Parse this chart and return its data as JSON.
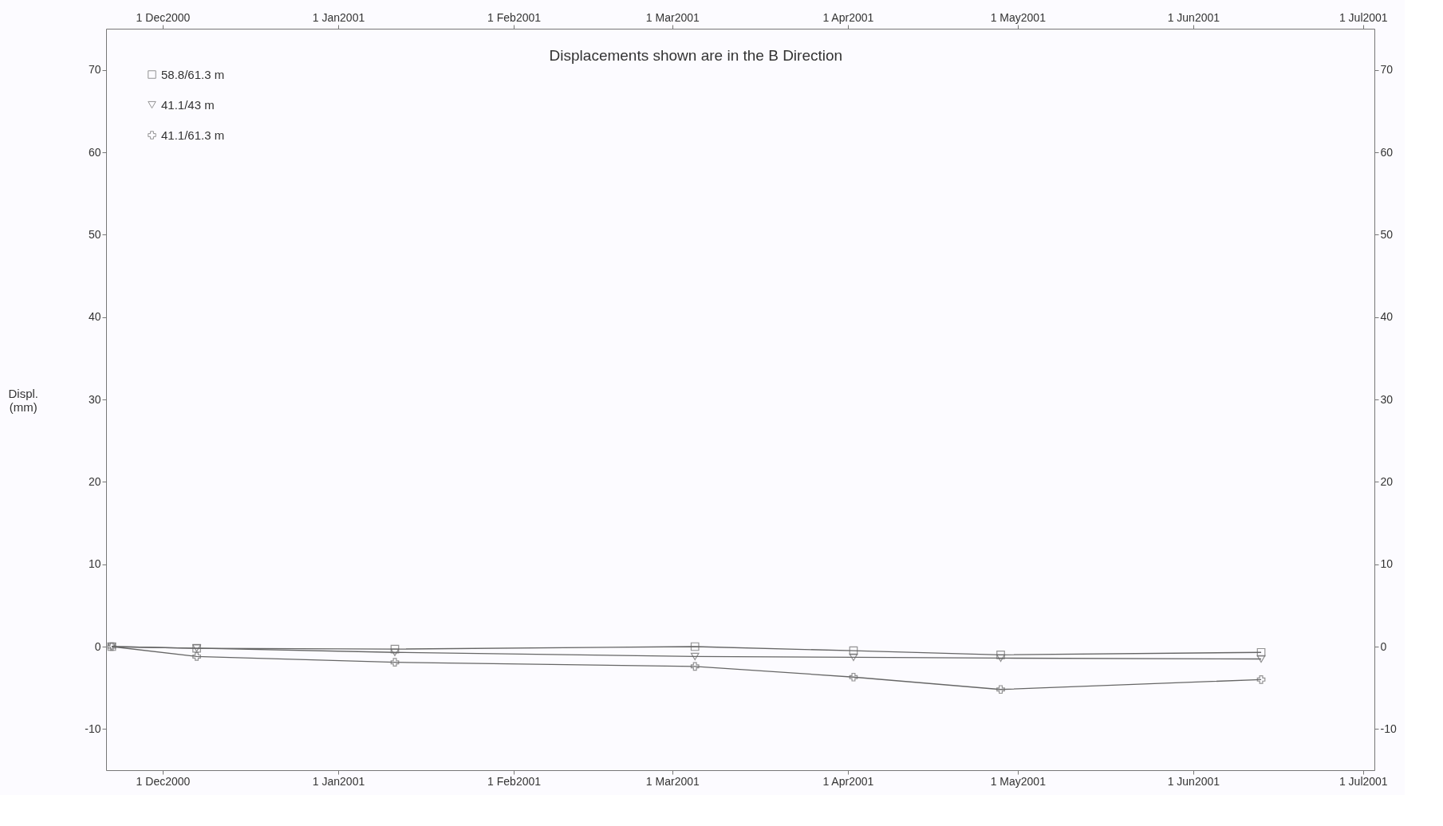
{
  "chart_data": {
    "type": "line",
    "title": "Displacements shown are in the  B Direction",
    "ylabel": "Displ.\n(mm)",
    "xlim": [
      "2000-11-21",
      "2001-07-03"
    ],
    "ylim": [
      -15,
      75
    ],
    "xticks": [
      {
        "value": "2000-12-01",
        "label": "1 Dec2000"
      },
      {
        "value": "2001-01-01",
        "label": "1 Jan2001"
      },
      {
        "value": "2001-02-01",
        "label": "1 Feb2001"
      },
      {
        "value": "2001-03-01",
        "label": "1 Mar2001"
      },
      {
        "value": "2001-04-01",
        "label": "1 Apr2001"
      },
      {
        "value": "2001-05-01",
        "label": "1 May2001"
      },
      {
        "value": "2001-06-01",
        "label": "1 Jun2001"
      },
      {
        "value": "2001-07-01",
        "label": "1 Jul2001"
      }
    ],
    "x2lim": [
      "2000-11-21",
      "2001-07-03"
    ],
    "x2ticks": [
      {
        "value": "2000-12-01",
        "label": "1 Dec2000"
      },
      {
        "value": "2001-01-01",
        "label": "1 Jan2001"
      },
      {
        "value": "2001-02-01",
        "label": "1 Feb2001"
      },
      {
        "value": "2001-03-01",
        "label": "1 Mar2001"
      },
      {
        "value": "2001-04-01",
        "label": "1 Apr2001"
      },
      {
        "value": "2001-05-01",
        "label": "1 May2001"
      },
      {
        "value": "2001-06-01",
        "label": "1 Jun2001"
      },
      {
        "value": "2001-07-01",
        "label": "1 Jul2001"
      }
    ],
    "yticks": [
      -10,
      0,
      10,
      20,
      30,
      40,
      50,
      60,
      70
    ],
    "y2lim": [
      -15,
      75
    ],
    "y2ticks": [
      -10,
      0,
      10,
      20,
      30,
      40,
      50,
      60,
      70
    ],
    "x": [
      "2000-11-22",
      "2000-12-07",
      "2001-01-11",
      "2001-03-05",
      "2001-04-02",
      "2001-04-28",
      "2001-06-13"
    ],
    "grid": false,
    "legend": "top left",
    "line_style": "solid",
    "series": [
      {
        "name": "58.8/61.3 m",
        "color": "#666666",
        "marker": "square",
        "values": [
          0,
          -0.2,
          -0.3,
          0,
          -0.5,
          -1,
          -0.7
        ]
      },
      {
        "name": "41.1/43 m",
        "color": "#666666",
        "marker": "triangle",
        "values": [
          0,
          -0.2,
          -0.7,
          -1.2,
          -1.3,
          -1.4,
          -1.5
        ]
      },
      {
        "name": "41.1/61.3 m",
        "color": "#666666",
        "marker": "cross",
        "values": [
          0,
          -1.2,
          -1.9,
          -2.4,
          -3.7,
          -5.2,
          -4
        ]
      }
    ]
  }
}
